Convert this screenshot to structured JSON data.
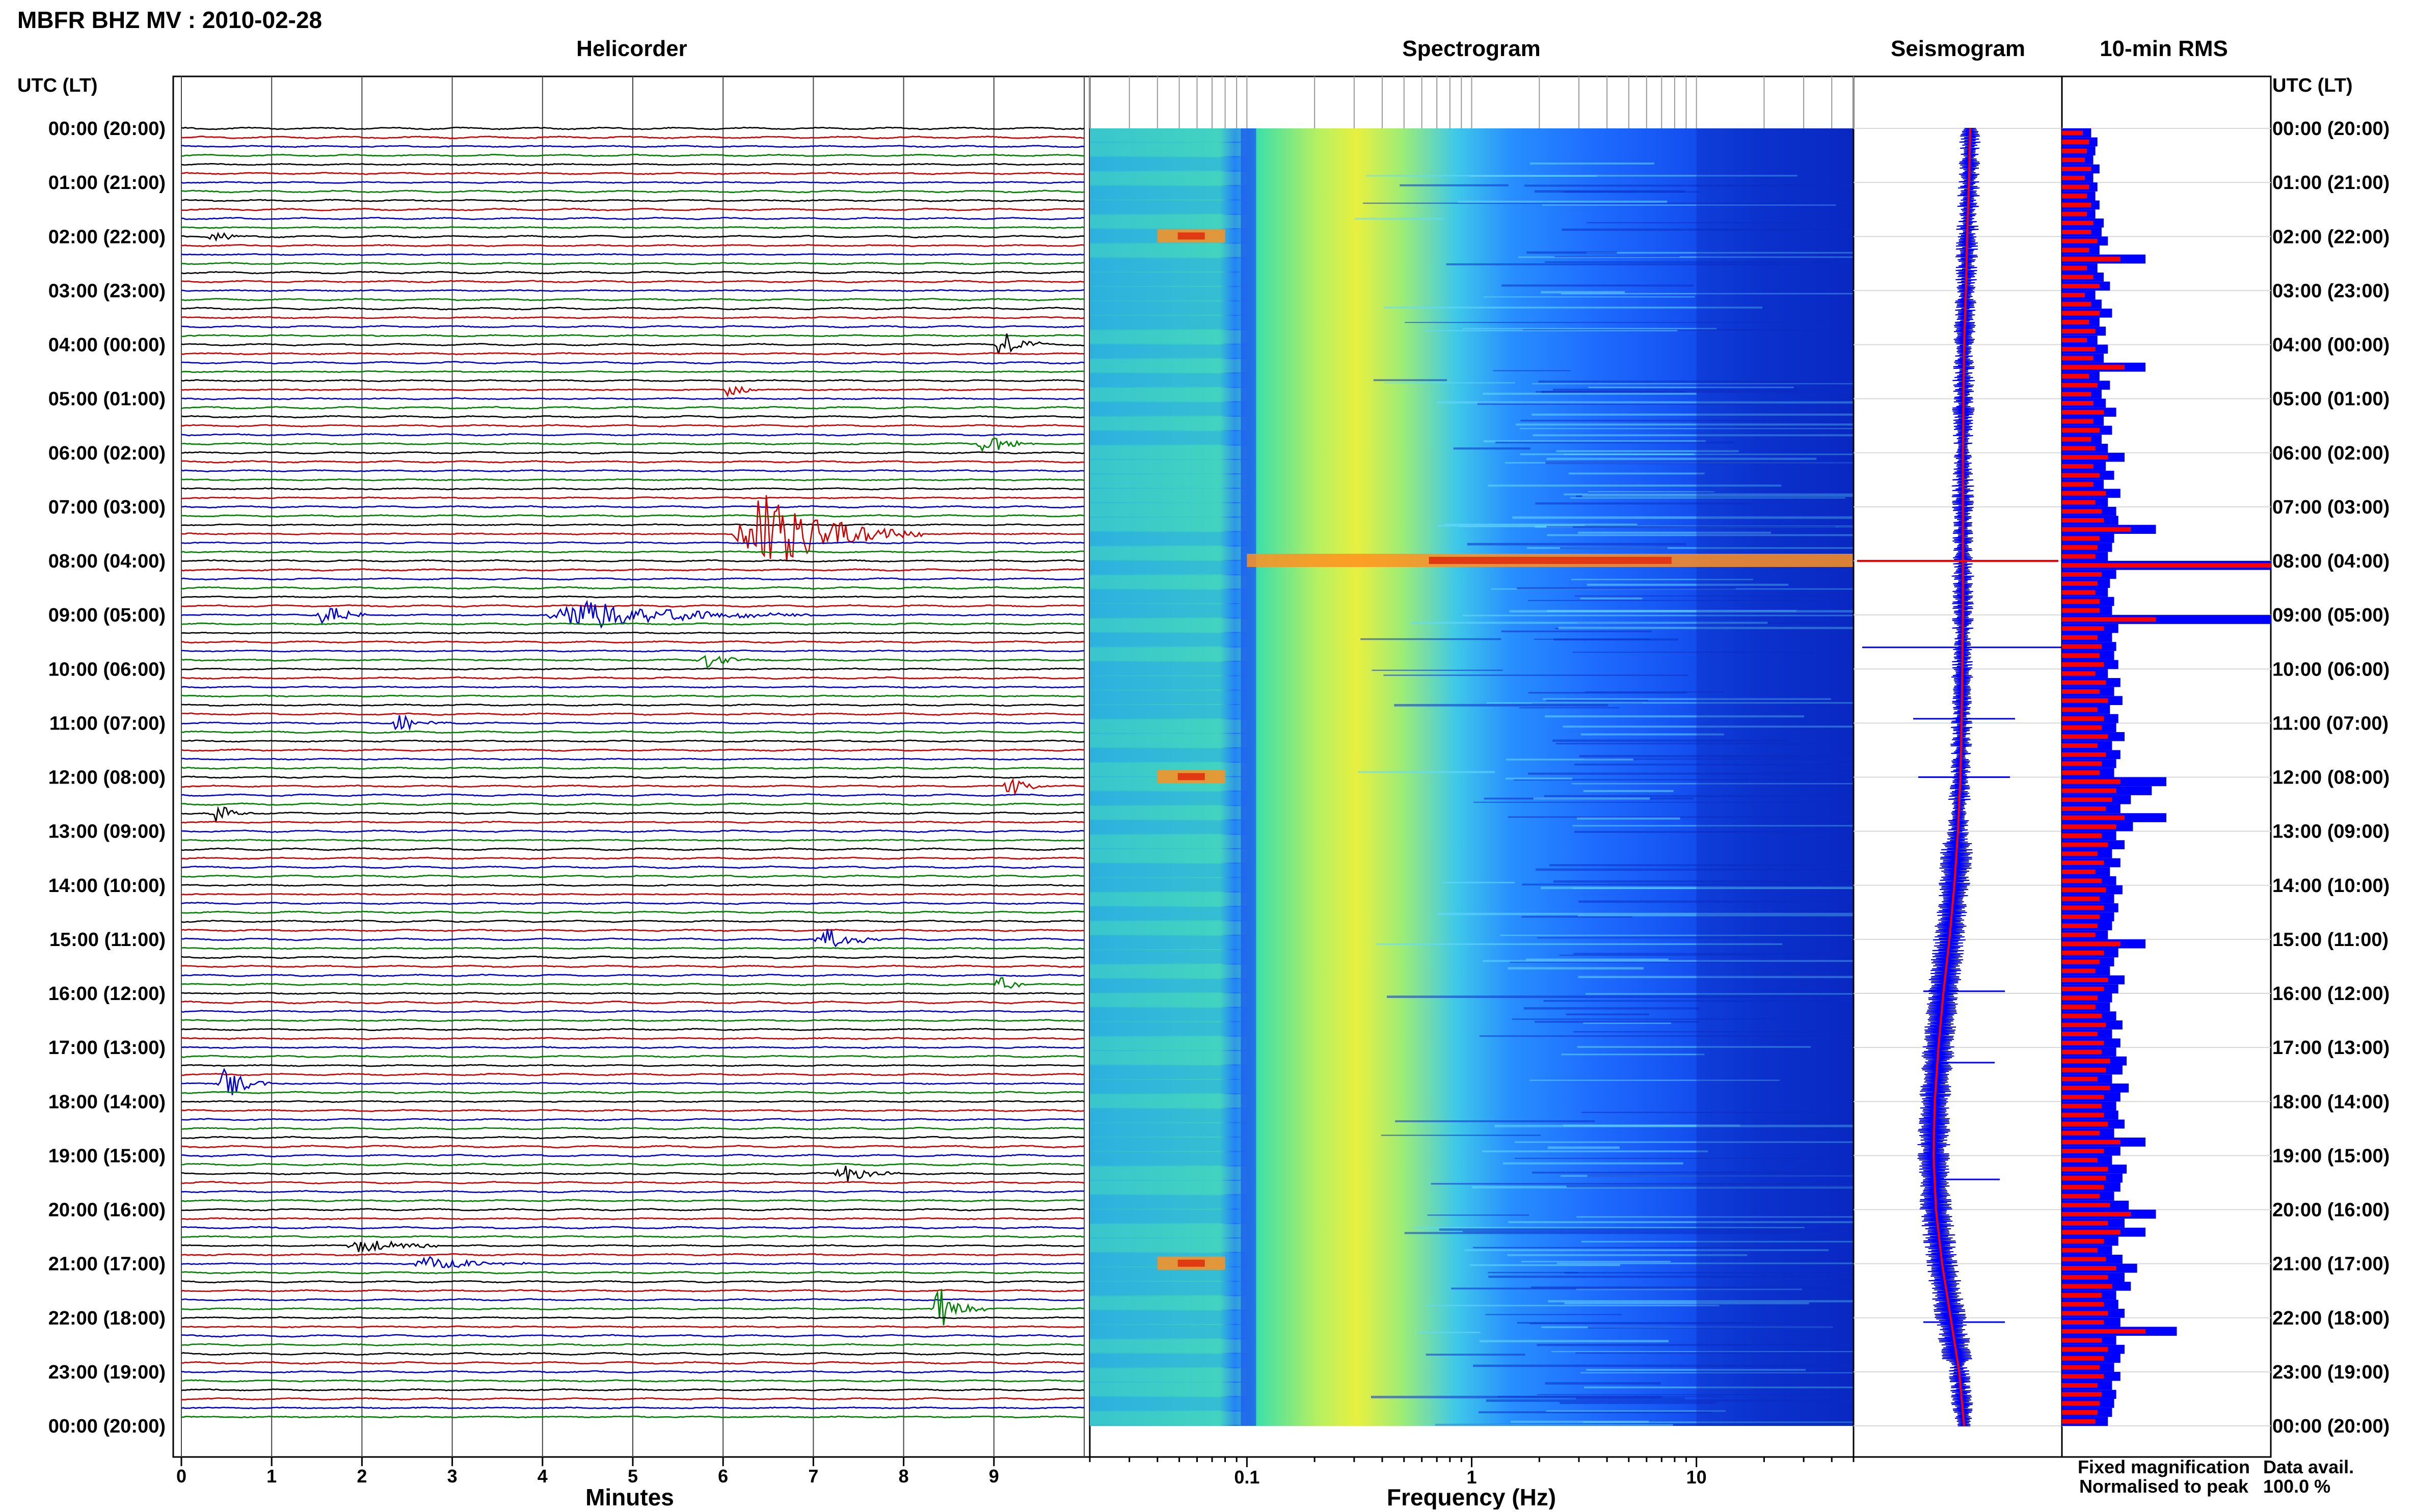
{
  "title": "MBFR BHZ MV : 2010-02-28",
  "panels": {
    "helicorder": "Helicorder",
    "spectrogram": "Spectrogram",
    "seismogram": "Seismogram",
    "rms": "10-min RMS"
  },
  "utc_header": "UTC (LT)",
  "time_labels": [
    "00:00 (20:00)",
    "01:00 (21:00)",
    "02:00 (22:00)",
    "03:00 (23:00)",
    "04:00 (00:00)",
    "05:00 (01:00)",
    "06:00 (02:00)",
    "07:00 (03:00)",
    "08:00 (04:00)",
    "09:00 (05:00)",
    "10:00 (06:00)",
    "11:00 (07:00)",
    "12:00 (08:00)",
    "13:00 (09:00)",
    "14:00 (10:00)",
    "15:00 (11:00)",
    "16:00 (12:00)",
    "17:00 (13:00)",
    "18:00 (14:00)",
    "19:00 (15:00)",
    "20:00 (16:00)",
    "21:00 (17:00)",
    "22:00 (18:00)",
    "23:00 (19:00)",
    "00:00 (20:00)"
  ],
  "helicorder_axis": {
    "xlabel": "Minutes",
    "ticks": [
      "0",
      "1",
      "2",
      "3",
      "4",
      "5",
      "6",
      "7",
      "8",
      "9"
    ],
    "trace_colors": [
      "#000000",
      "#cc0000",
      "#0000cc",
      "#008000"
    ]
  },
  "spectrogram_axis": {
    "xlabel": "Frequency (Hz)",
    "ticks": [
      "0.1",
      "1",
      "10"
    ],
    "scale": "log",
    "colors": [
      "#0a2fd0",
      "#1e64ff",
      "#2fb8ff",
      "#3fe0c8",
      "#a8f070",
      "#f0f040",
      "#ff9020",
      "#e03010"
    ]
  },
  "legend": {
    "fixed": "Fixed magnification",
    "fixed_color": "#0000ff",
    "normalised": "Normalised to peak",
    "normalised_color": "#ff0000"
  },
  "data_avail": {
    "label": "Data avail.",
    "value": "100.0 %"
  },
  "chart_data": [
    {
      "type": "line",
      "title": "Helicorder",
      "xlabel": "Minutes",
      "xlim": [
        0,
        10
      ],
      "rows": 144,
      "events": [
        {
          "row": 12,
          "start_min": 0.3,
          "len_min": 0.4,
          "amp": 0.8
        },
        {
          "row": 24,
          "start_min": 9.0,
          "len_min": 0.6,
          "amp": 1.3
        },
        {
          "row": 29,
          "start_min": 6.0,
          "len_min": 0.4,
          "amp": 0.7
        },
        {
          "row": 35,
          "start_min": 8.8,
          "len_min": 0.7,
          "amp": 1.0
        },
        {
          "row": 45,
          "start_min": 6.1,
          "len_min": 2.1,
          "amp": 3.4
        },
        {
          "row": 54,
          "start_min": 1.5,
          "len_min": 0.6,
          "amp": 1.1
        },
        {
          "row": 54,
          "start_min": 4.0,
          "len_min": 3.0,
          "amp": 1.2
        },
        {
          "row": 59,
          "start_min": 5.7,
          "len_min": 0.7,
          "amp": 0.6
        },
        {
          "row": 66,
          "start_min": 2.3,
          "len_min": 0.8,
          "amp": 0.7
        },
        {
          "row": 73,
          "start_min": 9.1,
          "len_min": 0.5,
          "amp": 0.9
        },
        {
          "row": 76,
          "start_min": 0.3,
          "len_min": 0.5,
          "amp": 0.8
        },
        {
          "row": 90,
          "start_min": 7.0,
          "len_min": 0.8,
          "amp": 1.1
        },
        {
          "row": 95,
          "start_min": 9.0,
          "len_min": 0.4,
          "amp": 0.8
        },
        {
          "row": 106,
          "start_min": 0.4,
          "len_min": 0.6,
          "amp": 1.4
        },
        {
          "row": 116,
          "start_min": 7.2,
          "len_min": 0.8,
          "amp": 0.8
        },
        {
          "row": 124,
          "start_min": 1.8,
          "len_min": 1.4,
          "amp": 0.6
        },
        {
          "row": 126,
          "start_min": 2.5,
          "len_min": 1.5,
          "amp": 0.6
        },
        {
          "row": 131,
          "start_min": 8.3,
          "len_min": 0.6,
          "amp": 1.9
        }
      ]
    },
    {
      "type": "heatmap",
      "title": "Spectrogram",
      "xlabel": "Frequency (Hz)",
      "xscale": "log",
      "xlim": [
        0.02,
        50
      ],
      "ylim": [
        "00:00",
        "24:00"
      ],
      "peak_band_hz": [
        0.15,
        0.4
      ],
      "bright_events": [
        {
          "time": "02:00",
          "freq_hz": [
            0.04,
            0.08
          ]
        },
        {
          "time": "08:00",
          "freq_hz": [
            0.1,
            50
          ]
        },
        {
          "time": "12:00",
          "freq_hz": [
            0.04,
            0.08
          ]
        },
        {
          "time": "21:00",
          "freq_hz": [
            0.04,
            0.08
          ]
        }
      ]
    },
    {
      "type": "line",
      "title": "Seismogram",
      "series": [
        {
          "name": "Fixed magnification",
          "values": [
            0.1,
            0.08,
            0.05,
            0.03,
            0.0,
            -0.01,
            -0.02,
            -0.02,
            -0.02,
            -0.02,
            -0.03,
            -0.04,
            -0.06,
            -0.1,
            -0.16,
            -0.24,
            -0.34,
            -0.42,
            -0.48,
            -0.5,
            -0.46,
            -0.36,
            -0.22,
            -0.08,
            0.0
          ]
        },
        {
          "name": "Normalised to peak",
          "values": [
            0.1,
            0.08,
            0.05,
            0.03,
            0.0,
            -0.01,
            -0.02,
            -0.02,
            -0.02,
            -0.02,
            -0.03,
            -0.04,
            -0.06,
            -0.1,
            -0.16,
            -0.24,
            -0.34,
            -0.42,
            -0.48,
            -0.5,
            -0.46,
            -0.36,
            -0.22,
            -0.08,
            0.0
          ]
        }
      ]
    },
    {
      "type": "bar",
      "title": "10-min RMS",
      "series": [
        {
          "name": "Fixed magnification",
          "values": [
            14,
            17,
            16,
            15,
            18,
            15,
            17,
            16,
            18,
            16,
            20,
            19,
            22,
            18,
            40,
            17,
            20,
            23,
            16,
            19,
            24,
            18,
            21,
            17,
            22,
            20,
            40,
            18,
            23,
            19,
            21,
            26,
            20,
            24,
            19,
            22,
            30,
            21,
            25,
            20,
            28,
            22,
            26,
            27,
            45,
            25,
            24,
            22,
            100,
            26,
            23,
            22,
            25,
            24,
            100,
            27,
            24,
            26,
            25,
            27,
            22,
            28,
            25,
            29,
            23,
            27,
            26,
            30,
            24,
            28,
            26,
            25,
            50,
            43,
            33,
            28,
            50,
            34,
            26,
            30,
            24,
            28,
            23,
            26,
            29,
            25,
            27,
            25,
            24,
            22,
            40,
            27,
            25,
            23,
            30,
            27,
            24,
            23,
            26,
            29,
            24,
            28,
            26,
            31,
            29,
            24,
            32,
            28,
            26,
            27,
            30,
            25,
            40,
            28,
            24,
            31,
            29,
            28,
            25,
            32,
            45,
            30,
            40,
            27,
            24,
            29,
            36,
            30,
            33,
            26,
            27,
            30,
            28,
            55,
            26,
            30,
            28,
            25,
            28,
            24,
            26,
            25,
            24,
            22
          ]
        },
        {
          "name": "Normalised to peak",
          "values": [
            10,
            13,
            12,
            11,
            14,
            11,
            13,
            12,
            14,
            12,
            15,
            14,
            17,
            13,
            28,
            12,
            15,
            18,
            11,
            14,
            18,
            13,
            16,
            12,
            16,
            15,
            30,
            13,
            17,
            14,
            15,
            20,
            15,
            18,
            14,
            16,
            22,
            15,
            18,
            15,
            21,
            16,
            19,
            20,
            33,
            18,
            17,
            16,
            100,
            19,
            17,
            16,
            18,
            18,
            45,
            20,
            17,
            19,
            18,
            20,
            16,
            21,
            18,
            22,
            17,
            20,
            19,
            22,
            17,
            21,
            19,
            18,
            28,
            26,
            24,
            21,
            30,
            26,
            19,
            22,
            17,
            20,
            16,
            19,
            21,
            18,
            20,
            18,
            17,
            16,
            28,
            20,
            18,
            16,
            22,
            20,
            17,
            16,
            19,
            21,
            17,
            20,
            19,
            23,
            21,
            17,
            23,
            20,
            19,
            20,
            22,
            18,
            28,
            20,
            17,
            22,
            21,
            20,
            18,
            23,
            33,
            22,
            28,
            20,
            17,
            21,
            26,
            22,
            24,
            19,
            20,
            22,
            20,
            40,
            19,
            22,
            20,
            18,
            20,
            17,
            19,
            18,
            17,
            16
          ]
        }
      ]
    }
  ]
}
